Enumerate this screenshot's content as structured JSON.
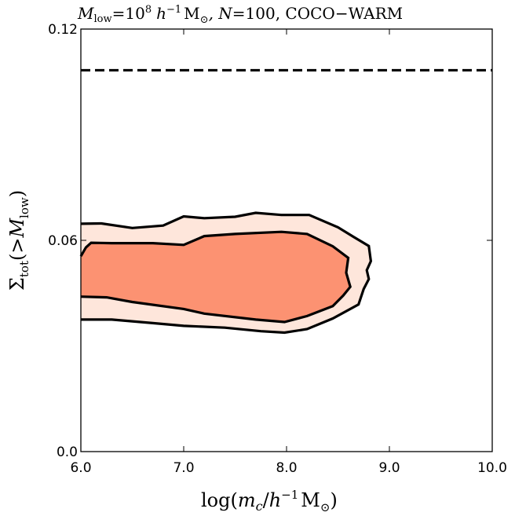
{
  "chart_data": {
    "type": "contour",
    "title_parts": {
      "m": "M",
      "low": "low",
      "eq10": "=10",
      "exp8": "8",
      "h": "h",
      "neg1": "−1",
      "msun": "M",
      "sun": "⊙",
      "n_part": ", N",
      "n_eq": "=100, COCO−WARM"
    },
    "xlabel_parts": {
      "log": "log(",
      "m": "m",
      "c": "c",
      "slash": "/",
      "h": "h",
      "neg1": "−1",
      "msun": "M",
      "sun": "⊙",
      "close": ")"
    },
    "ylabel_parts": {
      "sigma": "Σ",
      "tot": "tot",
      "open": "(>",
      "m": "M",
      "low": "low",
      "close": ")"
    },
    "xlim": [
      6.0,
      10.0
    ],
    "ylim": [
      0.0,
      0.12
    ],
    "xticks": [
      6.0,
      7.0,
      8.0,
      9.0,
      10.0
    ],
    "xtick_labels": [
      "6.0",
      "7.0",
      "8.0",
      "9.0",
      "10.0"
    ],
    "yticks": [
      0.0,
      0.06,
      0.12
    ],
    "ytick_labels": [
      "0.0",
      "0.06",
      "0.12"
    ],
    "reference_line": {
      "y": 0.1083,
      "style": "dashed",
      "color": "#000000"
    },
    "outer_contour": {
      "level": "95%",
      "fill": "#fee6db",
      "upper": [
        [
          6.0,
          0.0647
        ],
        [
          6.2,
          0.0648
        ],
        [
          6.5,
          0.0635
        ],
        [
          6.8,
          0.0642
        ],
        [
          7.0,
          0.0668
        ],
        [
          7.2,
          0.0663
        ],
        [
          7.5,
          0.0667
        ],
        [
          7.7,
          0.0678
        ],
        [
          7.95,
          0.0672
        ],
        [
          8.22,
          0.0672
        ],
        [
          8.5,
          0.0637
        ],
        [
          8.65,
          0.061
        ],
        [
          8.8,
          0.0584
        ]
      ],
      "right": [
        [
          8.8,
          0.0584
        ],
        [
          8.82,
          0.0541
        ],
        [
          8.78,
          0.0515
        ],
        [
          8.8,
          0.049
        ],
        [
          8.75,
          0.0462
        ],
        [
          8.7,
          0.0418
        ]
      ],
      "lower": [
        [
          8.7,
          0.0418
        ],
        [
          8.45,
          0.0378
        ],
        [
          8.2,
          0.0348
        ],
        [
          7.98,
          0.0338
        ],
        [
          7.75,
          0.0342
        ],
        [
          7.4,
          0.0352
        ],
        [
          7.0,
          0.0357
        ],
        [
          6.7,
          0.0365
        ],
        [
          6.3,
          0.0375
        ],
        [
          6.0,
          0.0375
        ]
      ]
    },
    "inner_contour": {
      "level": "68%",
      "fill": "#fc9272",
      "upper": [
        [
          6.0,
          0.0555
        ],
        [
          6.05,
          0.058
        ],
        [
          6.1,
          0.0593
        ],
        [
          6.3,
          0.0592
        ],
        [
          6.7,
          0.0592
        ],
        [
          7.0,
          0.0587
        ],
        [
          7.2,
          0.0612
        ],
        [
          7.5,
          0.0618
        ],
        [
          7.95,
          0.0624
        ],
        [
          8.2,
          0.0618
        ],
        [
          8.45,
          0.0583
        ],
        [
          8.6,
          0.055
        ]
      ],
      "right": [
        [
          8.6,
          0.055
        ],
        [
          8.58,
          0.0508
        ],
        [
          8.62,
          0.0468
        ],
        [
          8.55,
          0.0443
        ],
        [
          8.45,
          0.0413
        ]
      ],
      "lower": [
        [
          8.45,
          0.0413
        ],
        [
          8.2,
          0.0385
        ],
        [
          7.98,
          0.0368
        ],
        [
          7.7,
          0.0375
        ],
        [
          7.2,
          0.0392
        ],
        [
          7.0,
          0.0405
        ],
        [
          6.5,
          0.0425
        ],
        [
          6.25,
          0.0438
        ],
        [
          6.0,
          0.044
        ]
      ]
    }
  }
}
